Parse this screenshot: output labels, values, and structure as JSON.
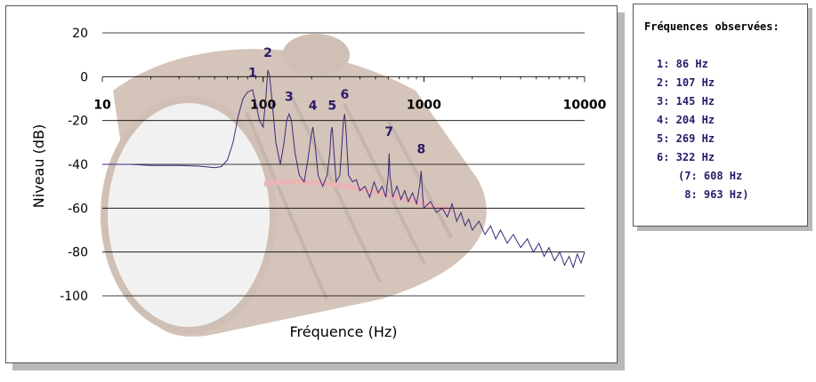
{
  "chart_data": {
    "type": "line",
    "xlabel": "Fréquence (Hz)",
    "ylabel": "Niveau (dB)",
    "x_scale": "log",
    "xlim": [
      10,
      10000
    ],
    "ylim": [
      -100,
      20
    ],
    "x_ticks": [
      10,
      100,
      1000,
      10000
    ],
    "x_tick_labels": [
      "10",
      "100",
      "1000",
      "10000"
    ],
    "y_ticks": [
      20,
      0,
      -20,
      -40,
      -60,
      -80,
      -100
    ],
    "y_tick_labels": [
      "20",
      "0",
      "-20",
      "-40",
      "-60",
      "-80",
      "-100"
    ],
    "grid": "horizontal",
    "line_color": "#3a2a7a",
    "peak_label_color": "#2a1a6b",
    "series": [
      {
        "points": [
          [
            10,
            -40
          ],
          [
            15,
            -40
          ],
          [
            20,
            -40.5
          ],
          [
            30,
            -40.5
          ],
          [
            40,
            -40.8
          ],
          [
            50,
            -41.5
          ],
          [
            55,
            -41
          ],
          [
            60,
            -38
          ],
          [
            65,
            -30
          ],
          [
            70,
            -18
          ],
          [
            75,
            -10
          ],
          [
            80,
            -7
          ],
          [
            86,
            -6
          ],
          [
            90,
            -12
          ],
          [
            95,
            -20
          ],
          [
            100,
            -23
          ],
          [
            104,
            -10
          ],
          [
            107,
            3
          ],
          [
            110,
            0
          ],
          [
            115,
            -15
          ],
          [
            120,
            -30
          ],
          [
            128,
            -40
          ],
          [
            135,
            -30
          ],
          [
            140,
            -20
          ],
          [
            145,
            -17
          ],
          [
            150,
            -20
          ],
          [
            158,
            -35
          ],
          [
            168,
            -45
          ],
          [
            180,
            -48
          ],
          [
            190,
            -38
          ],
          [
            198,
            -28
          ],
          [
            204,
            -23
          ],
          [
            210,
            -30
          ],
          [
            220,
            -45
          ],
          [
            235,
            -50
          ],
          [
            250,
            -45
          ],
          [
            260,
            -35
          ],
          [
            265,
            -25
          ],
          [
            269,
            -23
          ],
          [
            273,
            -30
          ],
          [
            285,
            -48
          ],
          [
            300,
            -45
          ],
          [
            310,
            -30
          ],
          [
            316,
            -20
          ],
          [
            322,
            -17
          ],
          [
            328,
            -25
          ],
          [
            340,
            -45
          ],
          [
            360,
            -48
          ],
          [
            380,
            -47
          ],
          [
            400,
            -52
          ],
          [
            430,
            -50
          ],
          [
            460,
            -55
          ],
          [
            490,
            -48
          ],
          [
            520,
            -53
          ],
          [
            550,
            -50
          ],
          [
            580,
            -55
          ],
          [
            600,
            -45
          ],
          [
            608,
            -35
          ],
          [
            616,
            -45
          ],
          [
            640,
            -55
          ],
          [
            680,
            -50
          ],
          [
            720,
            -56
          ],
          [
            760,
            -52
          ],
          [
            800,
            -57
          ],
          [
            850,
            -53
          ],
          [
            900,
            -58
          ],
          [
            940,
            -50
          ],
          [
            963,
            -43
          ],
          [
            985,
            -55
          ],
          [
            1000,
            -60
          ],
          [
            1100,
            -57
          ],
          [
            1200,
            -62
          ],
          [
            1300,
            -60
          ],
          [
            1400,
            -64
          ],
          [
            1500,
            -58
          ],
          [
            1600,
            -66
          ],
          [
            1700,
            -62
          ],
          [
            1800,
            -68
          ],
          [
            1900,
            -65
          ],
          [
            2000,
            -70
          ],
          [
            2200,
            -66
          ],
          [
            2400,
            -72
          ],
          [
            2600,
            -68
          ],
          [
            2800,
            -74
          ],
          [
            3000,
            -70
          ],
          [
            3300,
            -76
          ],
          [
            3600,
            -72
          ],
          [
            4000,
            -78
          ],
          [
            4400,
            -74
          ],
          [
            4800,
            -80
          ],
          [
            5200,
            -76
          ],
          [
            5600,
            -82
          ],
          [
            6000,
            -78
          ],
          [
            6500,
            -84
          ],
          [
            7000,
            -80
          ],
          [
            7500,
            -86
          ],
          [
            8000,
            -82
          ],
          [
            8500,
            -87
          ],
          [
            9000,
            -81
          ],
          [
            9500,
            -85
          ],
          [
            10000,
            -80
          ]
        ]
      }
    ],
    "peak_labels": [
      {
        "text": "1",
        "x": 86,
        "y": 0
      },
      {
        "text": "2",
        "x": 107,
        "y": 9
      },
      {
        "text": "3",
        "x": 145,
        "y": -11
      },
      {
        "text": "4",
        "x": 204,
        "y": -15
      },
      {
        "text": "5",
        "x": 269,
        "y": -15
      },
      {
        "text": "6",
        "x": 322,
        "y": -10
      },
      {
        "text": "7",
        "x": 608,
        "y": -27
      },
      {
        "text": "8",
        "x": 963,
        "y": -35
      }
    ]
  },
  "legend": {
    "title": "Fréquences observées:",
    "items": [
      "1: 86 Hz",
      "2: 107 Hz",
      "3: 145 Hz",
      "4: 204 Hz",
      "5: 269 Hz",
      "6: 322 Hz",
      "(7: 608 Hz",
      " 8: 963 Hz)"
    ]
  }
}
